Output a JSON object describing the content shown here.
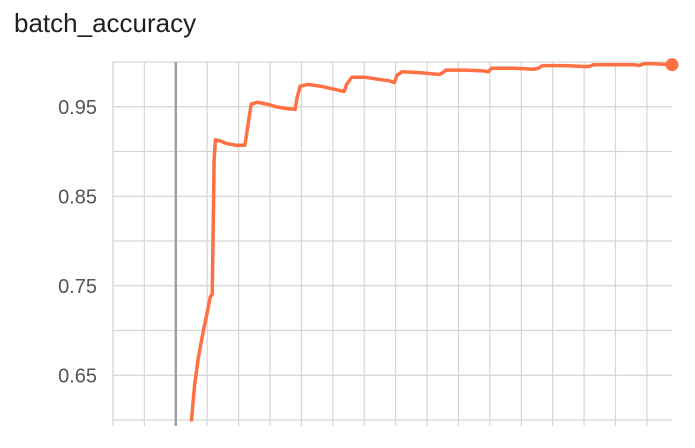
{
  "title": "batch_accuracy",
  "chart_data": {
    "type": "line",
    "title": "batch_accuracy",
    "xlabel": "",
    "ylabel": "",
    "ylim": [
      0.6,
      1.0
    ],
    "xlim": [
      -1.0,
      7.9
    ],
    "y_ticks": [
      0.65,
      0.75,
      0.85,
      0.95
    ],
    "y_tick_labels": [
      "0.65",
      "0.75",
      "0.85",
      "0.95"
    ],
    "grid": true,
    "color": "#ff7043",
    "series": [
      {
        "x": [
          0.25,
          0.3,
          0.36,
          0.44,
          0.5,
          0.55,
          0.58,
          0.6,
          0.61,
          0.63,
          0.7,
          0.8,
          0.95,
          1.1,
          1.15,
          1.2,
          1.3,
          1.45,
          1.6,
          1.75,
          1.9,
          1.93,
          1.98,
          2.1,
          2.3,
          2.5,
          2.68,
          2.72,
          2.8,
          3.0,
          3.2,
          3.4,
          3.48,
          3.52,
          3.6,
          3.9,
          4.2,
          4.25,
          4.3,
          4.6,
          4.9,
          4.97,
          5.03,
          5.4,
          5.7,
          5.77,
          5.84,
          6.2,
          6.5,
          6.58,
          6.65,
          7.0,
          7.3,
          7.37,
          7.45,
          7.6,
          7.9
        ],
        "y": [
          0.6,
          0.64,
          0.67,
          0.7,
          0.72,
          0.738,
          0.74,
          0.84,
          0.89,
          0.913,
          0.912,
          0.909,
          0.907,
          0.907,
          0.93,
          0.953,
          0.955,
          0.953,
          0.95,
          0.948,
          0.947,
          0.96,
          0.973,
          0.975,
          0.973,
          0.97,
          0.967,
          0.975,
          0.983,
          0.983,
          0.981,
          0.979,
          0.977,
          0.985,
          0.989,
          0.988,
          0.986,
          0.988,
          0.991,
          0.991,
          0.99,
          0.989,
          0.993,
          0.993,
          0.992,
          0.993,
          0.996,
          0.996,
          0.995,
          0.995,
          0.997,
          0.997,
          0.997,
          0.996,
          0.998,
          0.998,
          0.997
        ]
      }
    ]
  }
}
